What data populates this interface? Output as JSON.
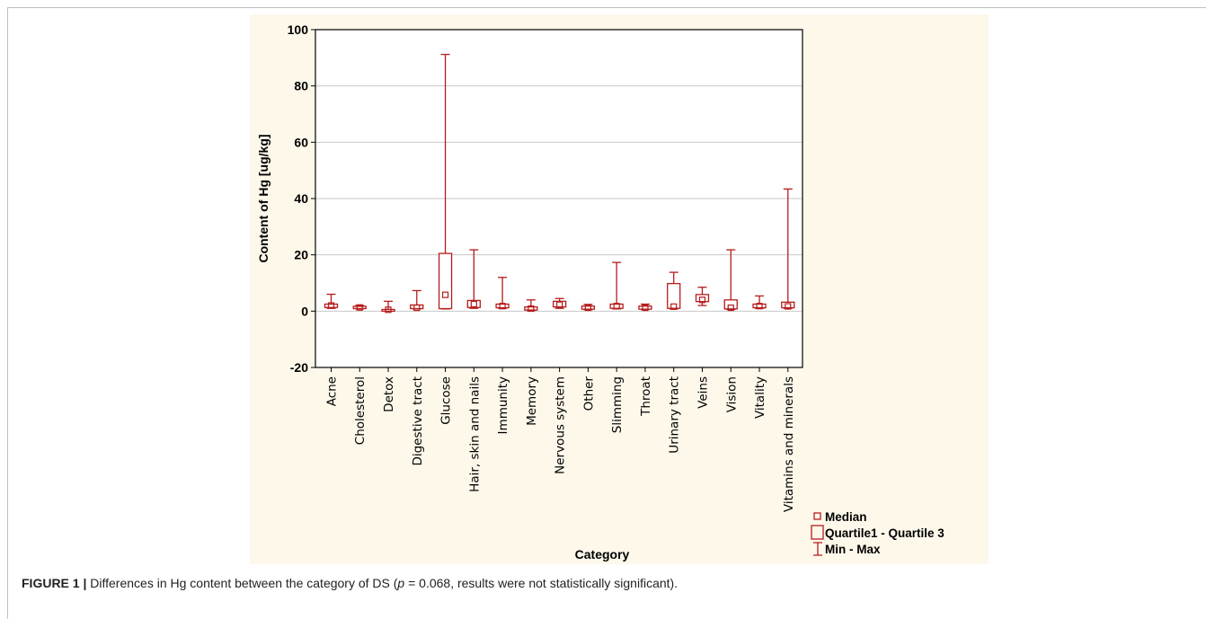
{
  "caption": {
    "label": "FIGURE 1 |",
    "text_before": " Differences in Hg content between the category of DS (",
    "p_symbol": "p",
    "text_after": " = 0.068, results were not statistically significant)."
  },
  "colors": {
    "panel_bg": "#fdf8ea",
    "series": "#b51c1c",
    "grid": "#c8c8c8"
  },
  "chart_data": {
    "type": "boxplot",
    "title": "",
    "xlabel": "Category",
    "ylabel": "Content of Hg [ug/kg]",
    "ylim": [
      -20,
      100
    ],
    "yticks": [
      -20,
      0,
      20,
      40,
      60,
      80,
      100
    ],
    "grid": true,
    "legend_position": "bottom-right",
    "legend": [
      "Median",
      "Quartile1 - Quartile 3",
      "Min - Max"
    ],
    "categories": [
      "Acne",
      "Cholesterol",
      "Detox",
      "Digestive tract",
      "Glucose",
      "Hair, skin and nails",
      "Immunity",
      "Memory",
      "Nervous system",
      "Other",
      "Slimming",
      "Throat",
      "Urinary tract",
      "Veins",
      "Vision",
      "Vitality",
      "Vitamins and minerals"
    ],
    "series": [
      {
        "category": "Acne",
        "min": 1.0,
        "q1": 1.3,
        "median": 2.0,
        "q3": 2.5,
        "max": 6.0
      },
      {
        "category": "Cholesterol",
        "min": 0.8,
        "q1": 0.9,
        "median": 1.3,
        "q3": 1.7,
        "max": 2.0
      },
      {
        "category": "Detox",
        "min": 0.1,
        "q1": 0.2,
        "median": 0.5,
        "q3": 0.6,
        "max": 3.5
      },
      {
        "category": "Digestive tract",
        "min": 0.8,
        "q1": 0.9,
        "median": 1.2,
        "q3": 2.2,
        "max": 7.3
      },
      {
        "category": "Glucose",
        "min": 0.8,
        "q1": 0.9,
        "median": 5.8,
        "q3": 20.5,
        "max": 91.2
      },
      {
        "category": "Hair, skin and nails",
        "min": 1.0,
        "q1": 1.3,
        "median": 2.5,
        "q3": 3.8,
        "max": 21.8
      },
      {
        "category": "Immunity",
        "min": 1.0,
        "q1": 1.2,
        "median": 1.8,
        "q3": 2.5,
        "max": 12.0
      },
      {
        "category": "Memory",
        "min": 0.2,
        "q1": 0.4,
        "median": 0.9,
        "q3": 1.5,
        "max": 4.0
      },
      {
        "category": "Nervous system",
        "min": 1.0,
        "q1": 1.5,
        "median": 2.3,
        "q3": 3.5,
        "max": 4.5
      },
      {
        "category": "Other",
        "min": 0.5,
        "q1": 0.7,
        "median": 1.2,
        "q3": 1.8,
        "max": 2.4
      },
      {
        "category": "Slimming",
        "min": 0.8,
        "q1": 1.0,
        "median": 1.8,
        "q3": 2.5,
        "max": 17.3
      },
      {
        "category": "Throat",
        "min": 0.6,
        "q1": 0.7,
        "median": 1.2,
        "q3": 1.8,
        "max": 2.5
      },
      {
        "category": "Urinary tract",
        "min": 0.8,
        "q1": 1.0,
        "median": 1.6,
        "q3": 9.8,
        "max": 13.8
      },
      {
        "category": "Veins",
        "min": 2.0,
        "q1": 3.4,
        "median": 4.0,
        "q3": 5.9,
        "max": 8.5
      },
      {
        "category": "Vision",
        "min": 0.6,
        "q1": 0.8,
        "median": 1.2,
        "q3": 4.0,
        "max": 21.8
      },
      {
        "category": "Vitality",
        "min": 1.0,
        "q1": 1.2,
        "median": 1.8,
        "q3": 2.5,
        "max": 5.4
      },
      {
        "category": "Vitamins and minerals",
        "min": 1.0,
        "q1": 1.2,
        "median": 1.7,
        "q3": 3.2,
        "max": 43.4
      }
    ]
  }
}
